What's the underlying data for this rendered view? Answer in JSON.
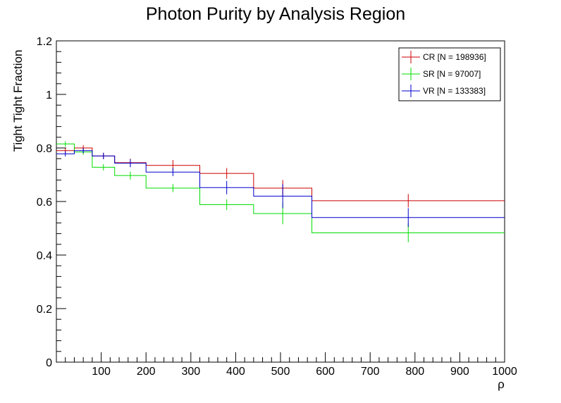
{
  "chart_data": {
    "type": "line",
    "title": "Photon Purity by Analysis Region",
    "xlabel": "ρ",
    "ylabel": "Tight Tight Fraction",
    "xlim": [
      0,
      1000
    ],
    "ylim": [
      0,
      1.2
    ],
    "x_ticks": [
      100,
      200,
      300,
      400,
      500,
      600,
      700,
      800,
      900,
      1000
    ],
    "x_tick_labels": [
      "100",
      "200",
      "300",
      "400",
      "500",
      "600",
      "700",
      "800",
      "900",
      "1000"
    ],
    "y_ticks": [
      0,
      0.2,
      0.4,
      0.6,
      0.8,
      1,
      1.2
    ],
    "y_tick_labels": [
      "0",
      "0.2",
      "0.4",
      "0.6",
      "0.8",
      "1",
      "1.2"
    ],
    "bin_edges": [
      0,
      40,
      80,
      130,
      200,
      320,
      440,
      570,
      1000
    ],
    "grid": false,
    "legend_position": "top-right",
    "series": [
      {
        "name": "CR [N = 198936]",
        "color": "#cc0000",
        "values": [
          0.79,
          0.8,
          0.77,
          0.745,
          0.735,
          0.705,
          0.65,
          0.603
        ],
        "errors": [
          0.01,
          0.01,
          0.012,
          0.015,
          0.02,
          0.02,
          0.03,
          0.025
        ]
      },
      {
        "name": "SR [N = 97007]",
        "color": "#00dd00",
        "values": [
          0.815,
          0.785,
          0.728,
          0.697,
          0.65,
          0.588,
          0.555,
          0.483
        ],
        "errors": [
          0.01,
          0.01,
          0.012,
          0.015,
          0.015,
          0.02,
          0.04,
          0.035
        ]
      },
      {
        "name": "VR [N = 133383]",
        "color": "#0000cc",
        "values": [
          0.778,
          0.79,
          0.77,
          0.743,
          0.71,
          0.652,
          0.62,
          0.54
        ],
        "errors": [
          0.01,
          0.01,
          0.012,
          0.015,
          0.015,
          0.025,
          0.045,
          0.035
        ]
      }
    ]
  }
}
